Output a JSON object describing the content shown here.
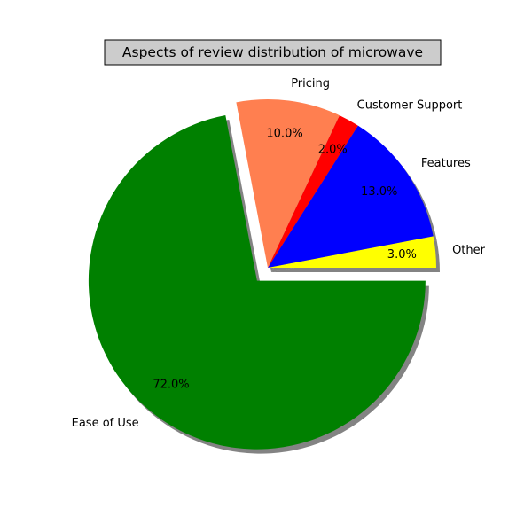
{
  "chart_data": {
    "type": "pie",
    "title": "Aspects of review distribution of microwave",
    "categories": [
      "Other",
      "Features",
      "Customer Support",
      "Pricing",
      "Ease of Use"
    ],
    "values": [
      3.0,
      13.0,
      2.0,
      10.0,
      72.0
    ],
    "pct_labels": [
      "3.0%",
      "13.0%",
      "2.0%",
      "10.0%",
      "72.0%"
    ],
    "colors": [
      "#ffff00",
      "#0000ff",
      "#ff0000",
      "#ff7f50",
      "#008000"
    ],
    "exploded": [
      false,
      false,
      false,
      false,
      true
    ],
    "shadow": true,
    "title_box": true
  }
}
